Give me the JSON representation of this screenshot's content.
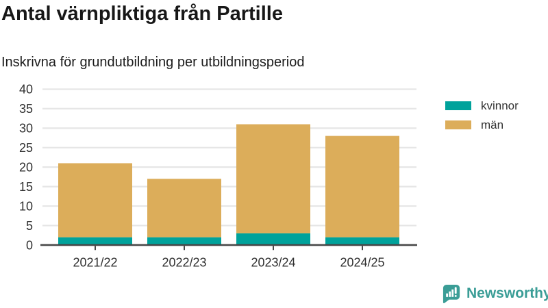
{
  "chart_data": {
    "type": "bar",
    "stacked": true,
    "title": "Antal värnpliktiga från Partille",
    "subtitle": "Inskrivna för grundutbildning per utbildningsperiod",
    "categories": [
      "2021/22",
      "2022/23",
      "2023/24",
      "2024/25"
    ],
    "series": [
      {
        "name": "kvinnor",
        "color": "#00a29b",
        "values": [
          2,
          2,
          3,
          2
        ]
      },
      {
        "name": "män",
        "color": "#dcad5a",
        "values": [
          19,
          15,
          28,
          26
        ]
      }
    ],
    "ylim": [
      0,
      40
    ],
    "yticks": [
      0,
      5,
      10,
      15,
      20,
      25,
      30,
      35,
      40
    ],
    "grid": "horizontal",
    "legend_position": "right",
    "colors": {
      "grid": "#e6e6e6",
      "axis": "#474747",
      "tick_label": "#303030"
    }
  },
  "branding": {
    "logo_text": "Newsworthy",
    "logo_color": "#3a9d96"
  }
}
